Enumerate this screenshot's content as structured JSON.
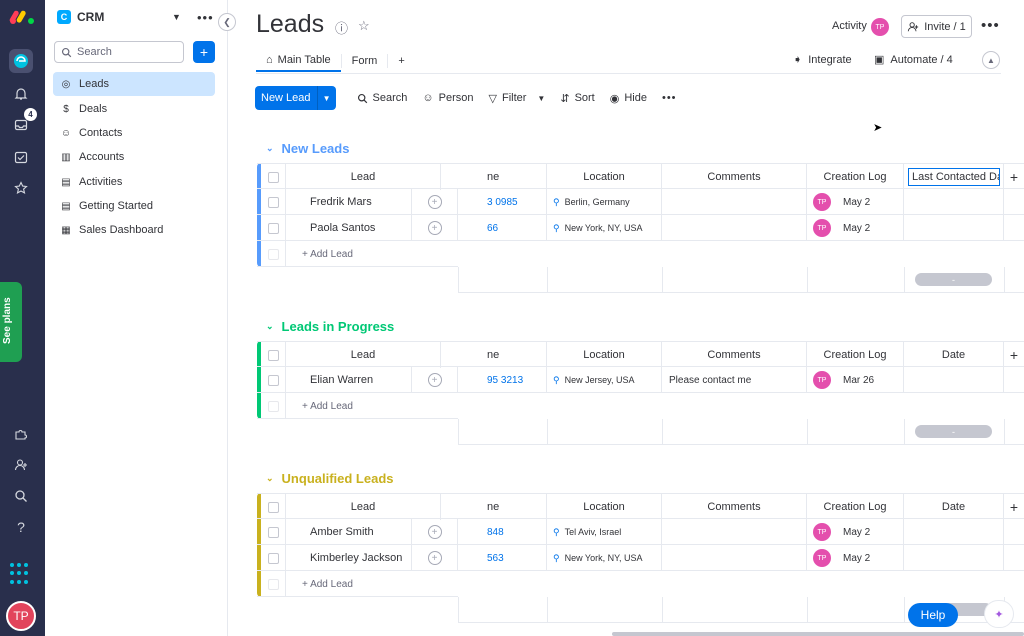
{
  "rail": {
    "inbox_badge": "4",
    "see_plans": "See plans",
    "user_initials": "TP"
  },
  "sidebar": {
    "workspace_logo": "C",
    "workspace_name": "CRM",
    "search_placeholder": "Search",
    "add_label": "+",
    "items": [
      {
        "label": "Leads",
        "icon": "target-icon",
        "active": true
      },
      {
        "label": "Deals",
        "icon": "dollar-icon"
      },
      {
        "label": "Contacts",
        "icon": "contacts-icon"
      },
      {
        "label": "Accounts",
        "icon": "building-icon"
      },
      {
        "label": "Activities",
        "icon": "activities-icon"
      },
      {
        "label": "Getting Started",
        "icon": "doc-icon"
      },
      {
        "label": "Sales Dashboard",
        "icon": "dashboard-icon"
      }
    ]
  },
  "header": {
    "title": "Leads",
    "activity_label": "Activity",
    "activity_initials": "TP",
    "invite_label": "Invite / 1"
  },
  "tabs": {
    "main_table": "Main Table",
    "form": "Form",
    "add": "+",
    "integrate": "Integrate",
    "automate": "Automate / 4"
  },
  "toolbar": {
    "new_lead": "New Lead",
    "search": "Search",
    "person": "Person",
    "filter": "Filter",
    "sort": "Sort",
    "hide": "Hide"
  },
  "groups": [
    {
      "title": "New Leads",
      "color": "#579bfc",
      "columns": {
        "lead": "Lead",
        "phone": "ne",
        "location": "Location",
        "comments": "Comments",
        "creation_log": "Creation Log",
        "date": "Last Contacted Da"
      },
      "rows": [
        {
          "lead": "Fredrik Mars",
          "phone": "3 0985",
          "location": "Berlin, Germany",
          "comments": "",
          "initials": "TP",
          "created": "May 2"
        },
        {
          "lead": "Paola Santos",
          "phone": "66",
          "location": "New York, NY, USA",
          "comments": "",
          "initials": "TP",
          "created": "May 2"
        }
      ],
      "add_label": "+ Add Lead",
      "footer": "-"
    },
    {
      "title": "Leads in Progress",
      "color": "#00c875",
      "columns": {
        "lead": "Lead",
        "phone": "ne",
        "location": "Location",
        "comments": "Comments",
        "creation_log": "Creation Log",
        "date": "Date"
      },
      "rows": [
        {
          "lead": "Elian Warren",
          "phone": "95 3213",
          "location": "New Jersey, USA",
          "comments": "Please contact me",
          "initials": "TP",
          "created": "Mar 26"
        }
      ],
      "add_label": "+ Add Lead",
      "footer": "-"
    },
    {
      "title": "Unqualified Leads",
      "color": "#c9b11e",
      "columns": {
        "lead": "Lead",
        "phone": "ne",
        "location": "Location",
        "comments": "Comments",
        "creation_log": "Creation Log",
        "date": "Date"
      },
      "rows": [
        {
          "lead": "Amber Smith",
          "phone": "848",
          "location": "Tel Aviv, Israel",
          "comments": "",
          "initials": "TP",
          "created": "May 2"
        },
        {
          "lead": "Kimberley Jackson",
          "phone": "563",
          "location": "New York, NY, USA",
          "comments": "",
          "initials": "TP",
          "created": "May 2"
        }
      ],
      "add_label": "+ Add Lead",
      "footer": "-"
    }
  ],
  "help_label": "Help"
}
